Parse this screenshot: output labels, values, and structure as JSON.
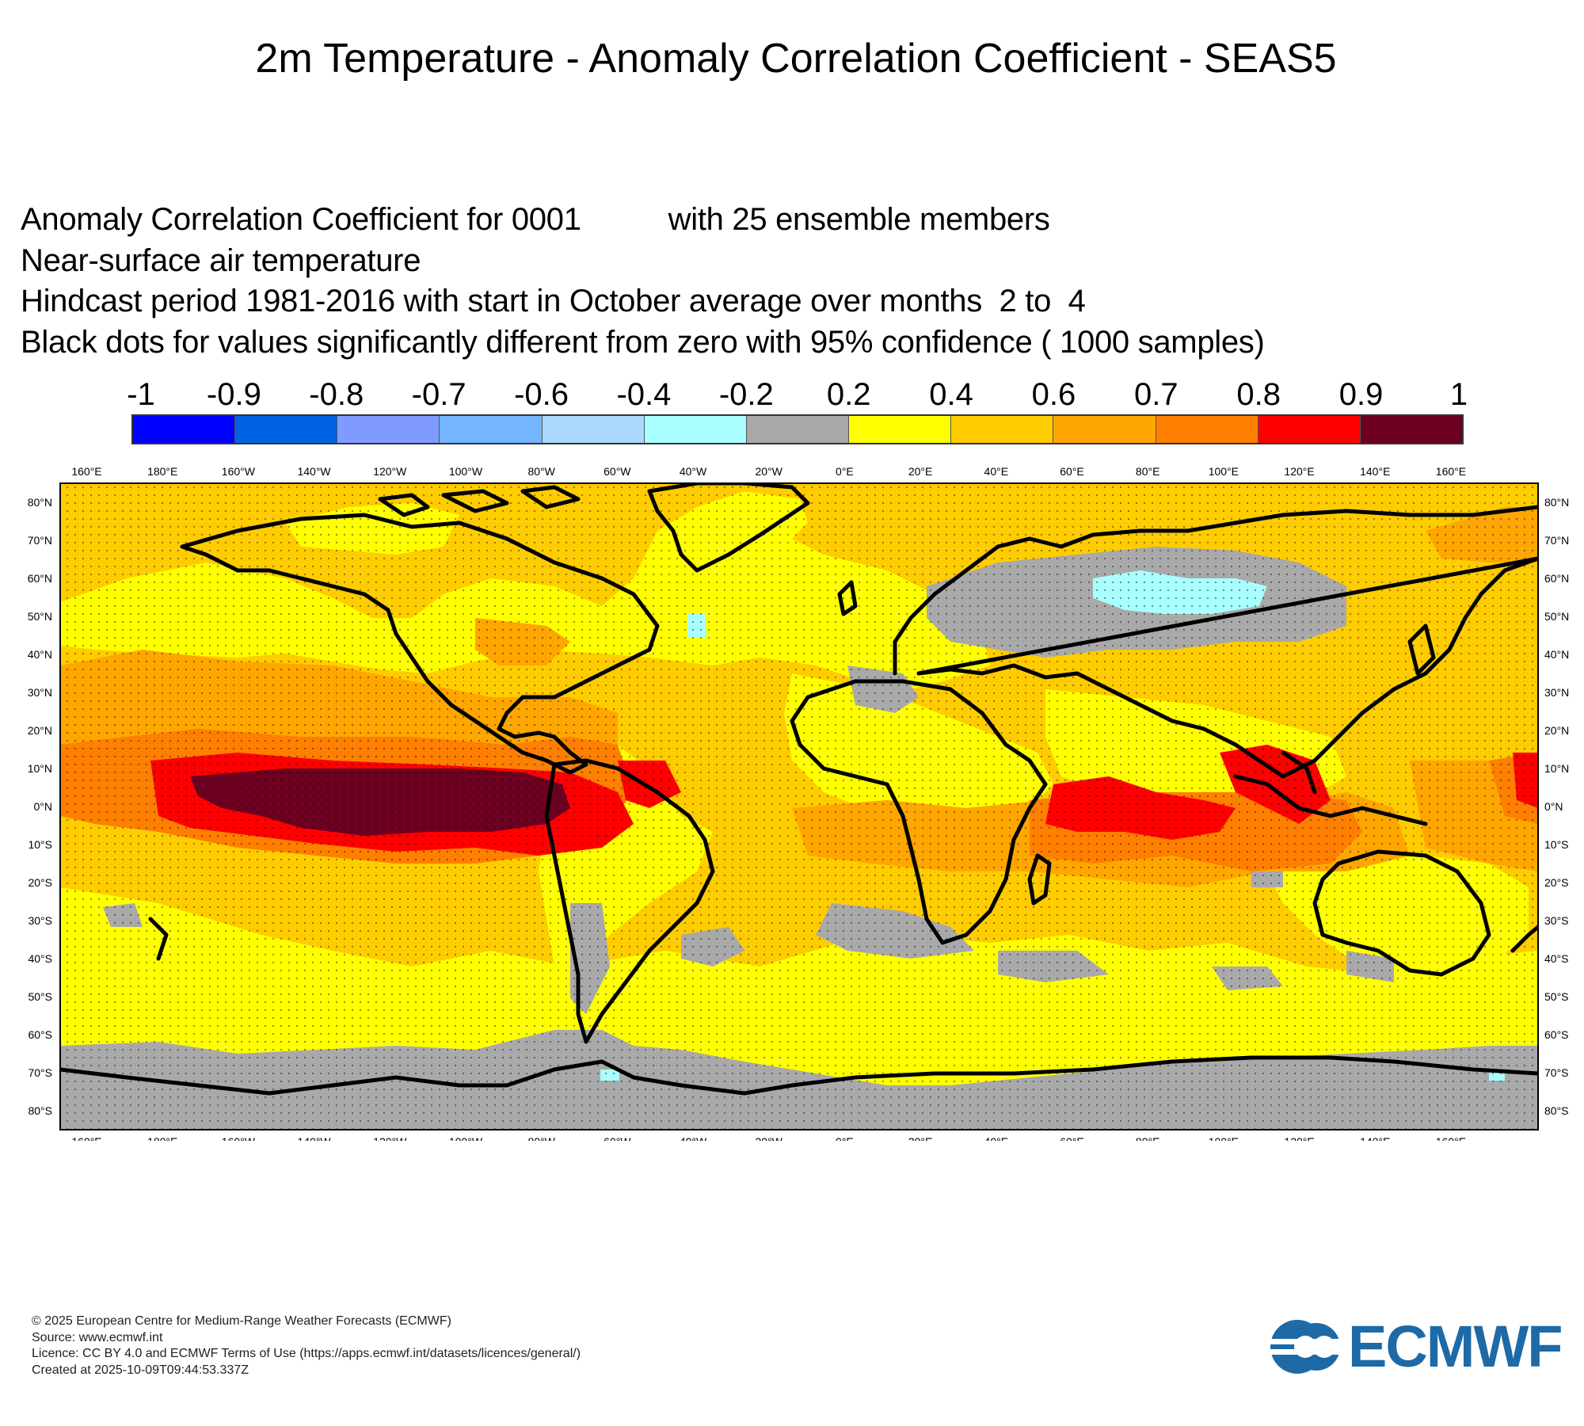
{
  "title": "2m Temperature - Anomaly Correlation Coefficient - SEAS5",
  "subtitle": {
    "line1_left": "Anomaly Correlation Coefficient for 0001",
    "line1_right": "with 25 ensemble members",
    "line2": "Near-surface air temperature",
    "line3": "Hindcast period 1981-2016 with start in October average over months  2 to  4",
    "line4": "Black dots for values significantly different from zero with 95% confidence ( 1000 samples)"
  },
  "colorbar": {
    "labels": [
      "-1",
      "-0.9",
      "-0.8",
      "-0.7",
      "-0.6",
      "-0.4",
      "-0.2",
      "0.2",
      "0.4",
      "0.6",
      "0.7",
      "0.8",
      "0.9",
      "1"
    ],
    "colors": [
      "#0000ff",
      "#0063e1",
      "#7f9bff",
      "#74b5ff",
      "#acd8ff",
      "#a9ffff",
      "#a9a9a9",
      "#ffff00",
      "#ffcc00",
      "#ffa600",
      "#ff7f00",
      "#ff0000",
      "#6d0020"
    ]
  },
  "map": {
    "top_lon_labels": [
      "160°E",
      "180°E",
      "160°W",
      "140°W",
      "120°W",
      "100°W",
      "80°W",
      "60°W",
      "40°W",
      "20°W",
      "0°E",
      "20°E",
      "40°E",
      "60°E",
      "80°E",
      "100°E",
      "120°E",
      "140°E",
      "160°E"
    ],
    "lat_labels": [
      "80°N",
      "70°N",
      "60°N",
      "50°N",
      "40°N",
      "30°N",
      "20°N",
      "10°N",
      "0°N",
      "10°S",
      "20°S",
      "30°S",
      "40°S",
      "50°S",
      "60°S",
      "70°S",
      "80°S"
    ],
    "lat_values": [
      80,
      70,
      60,
      50,
      40,
      30,
      20,
      10,
      0,
      -10,
      -20,
      -30,
      -40,
      -50,
      -60,
      -70,
      -80
    ],
    "lon_values": [
      160,
      180,
      -160,
      -140,
      -120,
      -100,
      -80,
      -60,
      -40,
      -20,
      0,
      20,
      40,
      60,
      80,
      100,
      120,
      140,
      160
    ],
    "extent": {
      "lon_min": 153,
      "lon_max": 543,
      "lat_min": -85,
      "lat_max": 85
    },
    "dominant_field_color": "#ffcc00",
    "coast_color": "#000000"
  },
  "footer": {
    "line1": "© 2025 European Centre for Medium-Range Weather Forecasts (ECMWF)",
    "line2": "Source: www.ecmwf.int",
    "line3": "Licence: CC BY 4.0 and ECMWF Terms of Use (https://apps.ecmwf.int/datasets/licences/general/)",
    "line4": "Created at 2025-10-09T09:44:53.337Z"
  },
  "logo": {
    "text": "ECMWF",
    "color": "#1d6aa7"
  }
}
